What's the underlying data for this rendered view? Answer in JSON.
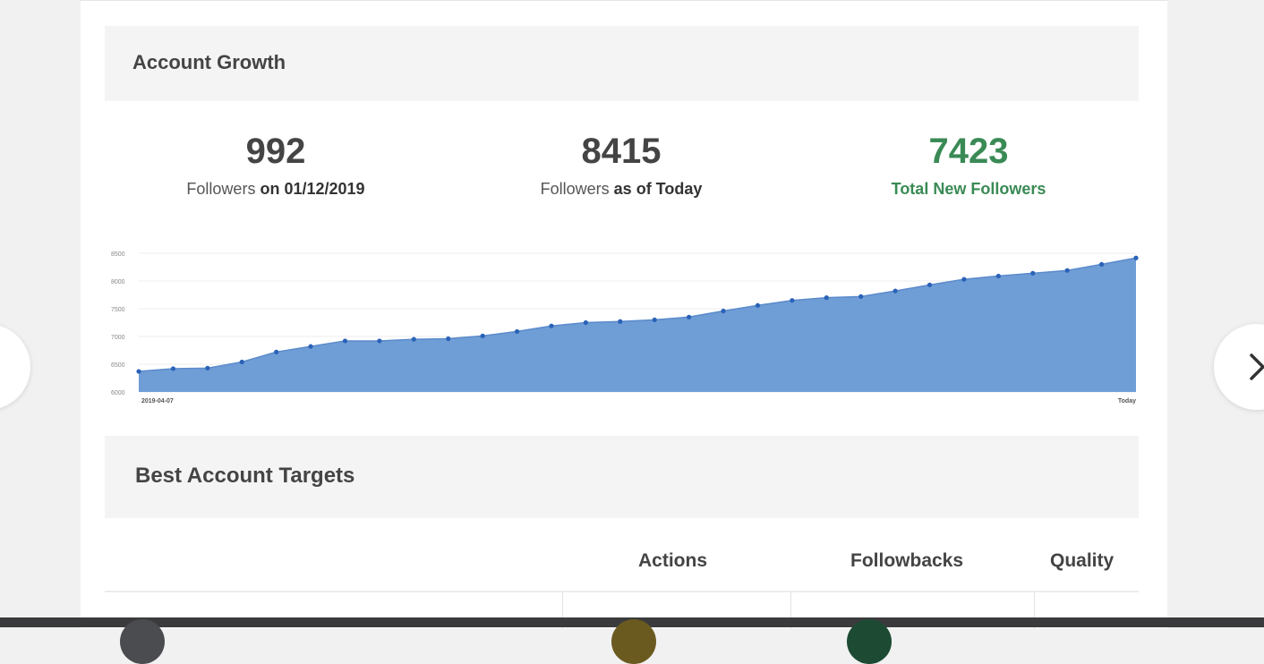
{
  "account_growth": {
    "title": "Account Growth",
    "stats": [
      {
        "value": "992",
        "label": "Followers",
        "label_bold": "on 01/12/2019"
      },
      {
        "value": "8415",
        "label": "Followers",
        "label_bold": "as of Today"
      },
      {
        "value": "7423",
        "label": "Total New Followers"
      }
    ]
  },
  "chart_data": {
    "type": "area",
    "x_start_label": "2019-04-07",
    "x_end_label": "Today",
    "yticks": [
      "6000",
      "6500",
      "7000",
      "7500",
      "8000",
      "8500"
    ],
    "ylim": [
      6000,
      8500
    ],
    "grid": true,
    "color": "#6f9dd5",
    "point_color": "#2a62b8",
    "values": [
      6370,
      6420,
      6430,
      6540,
      6720,
      6820,
      6920,
      6920,
      6950,
      6960,
      7010,
      7090,
      7190,
      7250,
      7270,
      7300,
      7350,
      7460,
      7560,
      7650,
      7700,
      7720,
      7820,
      7930,
      8030,
      8090,
      8140,
      8190,
      8300,
      8415
    ]
  },
  "targets": {
    "title": "Best Account Targets",
    "columns": [
      "Actions",
      "Followbacks",
      "Quality"
    ]
  },
  "icons": {
    "next": "chevron-right-icon",
    "prev": "chevron-left-icon"
  },
  "colors": {
    "accent_green": "#3a8a55",
    "chart_fill": "#6f9dd5",
    "bottom_bar": "#3b3b3d"
  }
}
